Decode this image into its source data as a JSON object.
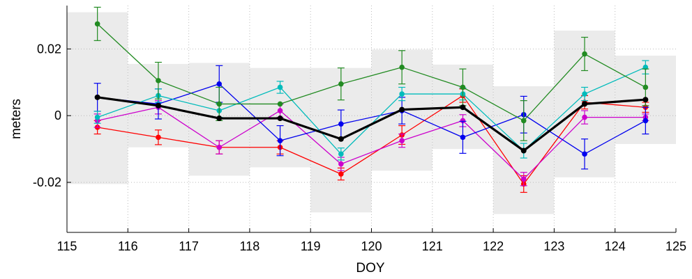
{
  "chart_data": {
    "type": "line",
    "title": "",
    "xlabel": "DOY",
    "ylabel": "meters",
    "xlim": [
      115,
      125
    ],
    "ylim": [
      -0.035,
      0.033
    ],
    "xticks": [
      115,
      116,
      117,
      118,
      119,
      120,
      121,
      122,
      123,
      124,
      125
    ],
    "yticks": [
      -0.02,
      0,
      0.02
    ],
    "ytick_labels": [
      "-0.02",
      "0",
      "0.02"
    ],
    "grid": true,
    "legend": "none",
    "x": [
      115.5,
      116.5,
      117.5,
      118.5,
      119.5,
      120.5,
      121.5,
      122.5,
      123.5,
      124.5
    ],
    "bands": [
      {
        "x0": 115,
        "x1": 116,
        "y0": -0.0205,
        "y1": 0.031
      },
      {
        "x0": 116,
        "x1": 117,
        "y0": -0.0095,
        "y1": 0.0155
      },
      {
        "x0": 117,
        "x1": 118,
        "y0": -0.018,
        "y1": 0.0158
      },
      {
        "x0": 118,
        "x1": 119,
        "y0": -0.0155,
        "y1": 0.0143
      },
      {
        "x0": 119,
        "x1": 120,
        "y0": -0.029,
        "y1": 0.0143
      },
      {
        "x0": 120,
        "x1": 121,
        "y0": -0.0165,
        "y1": 0.0198
      },
      {
        "x0": 121,
        "x1": 122,
        "y0": -0.01,
        "y1": 0.0153
      },
      {
        "x0": 122,
        "x1": 123,
        "y0": -0.0295,
        "y1": 0.0088
      },
      {
        "x0": 123,
        "x1": 124,
        "y0": -0.0185,
        "y1": 0.0255
      },
      {
        "x0": 124,
        "x1": 125,
        "y0": -0.0085,
        "y1": 0.018
      }
    ],
    "series": [
      {
        "color": "#ff0000",
        "values": [
          -0.0035,
          -0.0065,
          -0.0095,
          -0.0095,
          -0.0175,
          -0.0058,
          0.006,
          -0.0205,
          0.004,
          0.0025
        ],
        "errors": [
          0.002,
          0.0022,
          0.002,
          0.002,
          0.0018,
          0.0028,
          0.002,
          0.0025,
          0.002,
          0.0015
        ]
      },
      {
        "color": "#cc00cc",
        "values": [
          -0.0015,
          0.0025,
          -0.0095,
          0.0015,
          -0.0145,
          -0.0075,
          -0.0015,
          -0.019,
          -0.0005,
          -0.0005
        ],
        "errors": [
          0.002,
          0.002,
          0.002,
          0.002,
          0.002,
          0.002,
          0.0018,
          0.002,
          0.002,
          0.001
        ]
      },
      {
        "color": "#0000ee",
        "values": [
          0.0055,
          0.0035,
          0.0095,
          -0.0075,
          -0.0025,
          0.0015,
          -0.0065,
          0.0003,
          -0.0115,
          -0.0015
        ],
        "errors": [
          0.0042,
          0.0045,
          0.0055,
          0.0045,
          0.0042,
          0.004,
          0.0048,
          0.0055,
          0.0045,
          0.004
        ]
      },
      {
        "color": "#00bbbb",
        "values": [
          -0.0005,
          0.006,
          0.0015,
          0.0085,
          -0.0115,
          0.0065,
          0.0065,
          -0.0105,
          0.0065,
          0.0145
        ],
        "errors": [
          0.0018,
          0.002,
          0.002,
          0.0018,
          0.0018,
          0.002,
          0.0018,
          0.0022,
          0.002,
          0.002
        ]
      },
      {
        "color": "#228b22",
        "values": [
          0.0275,
          0.0105,
          0.0035,
          0.0035,
          0.0095,
          0.0145,
          0.0085,
          -0.0015,
          0.0185,
          0.0085
        ],
        "errors": [
          0.005,
          0.0055,
          0.005,
          0.0,
          0.0048,
          0.005,
          0.0055,
          0.006,
          0.005,
          0.0055
        ]
      },
      {
        "color": "#000000",
        "values": [
          0.0055,
          0.003,
          -0.0008,
          -0.0008,
          -0.007,
          0.0018,
          0.0025,
          -0.0105,
          0.0035,
          0.0048
        ],
        "errors": []
      }
    ]
  }
}
